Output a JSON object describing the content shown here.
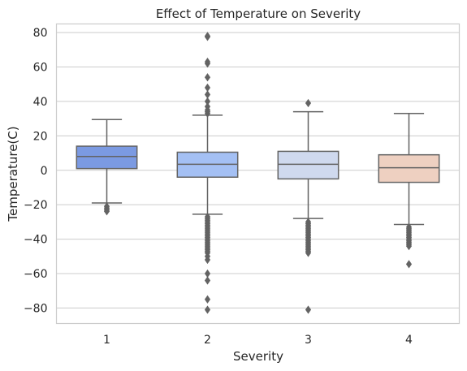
{
  "chart_data": {
    "type": "box",
    "title": "Effect of Temperature on Severity",
    "xlabel": "Severity",
    "ylabel": "Temperature(C)",
    "ylim": [
      -89,
      85
    ],
    "yticks": [
      80,
      60,
      40,
      20,
      0,
      -20,
      -40,
      -60,
      -80
    ],
    "ytick_labels": [
      "80",
      "60",
      "40",
      "20",
      "0",
      "−20",
      "−40",
      "−60",
      "−80"
    ],
    "grid": "horizontal",
    "categories": [
      "1",
      "2",
      "3",
      "4"
    ],
    "colors": [
      "#7b9ae2",
      "#a4c0f4",
      "#cfd9ee",
      "#eed0c1"
    ],
    "boxes": [
      {
        "category": "1",
        "whisker_low": -19,
        "q1": 1,
        "median": 8,
        "q3": 14,
        "whisker_high": 29.5,
        "outliers": [
          -21,
          -22,
          -23,
          -23.8
        ]
      },
      {
        "category": "2",
        "whisker_low": -25.5,
        "q1": -4,
        "median": 3.5,
        "q3": 10.5,
        "whisker_high": 32,
        "outliers": [
          33,
          34,
          35,
          37,
          40,
          44,
          48,
          54,
          62,
          63,
          77.5,
          78,
          -27,
          -28,
          -29,
          -30,
          -31,
          -32,
          -33,
          -34,
          -35,
          -36,
          -37,
          -38,
          -39,
          -40,
          -41,
          -42,
          -43,
          -44,
          -45,
          -46,
          -47,
          -48,
          -50,
          -52,
          -60,
          -64,
          -75,
          -81
        ]
      },
      {
        "category": "3",
        "whisker_low": -28,
        "q1": -5,
        "median": 3.5,
        "q3": 11,
        "whisker_high": 34,
        "outliers": [
          39,
          -30,
          -31,
          -32,
          -33,
          -34,
          -35,
          -36,
          -37,
          -38,
          -39,
          -40,
          -41,
          -42,
          -43,
          -44,
          -45,
          -46,
          -47,
          -48,
          -81
        ]
      },
      {
        "category": "4",
        "whisker_low": -31.5,
        "q1": -7,
        "median": 1.5,
        "q3": 9,
        "whisker_high": 33,
        "outliers": [
          -33,
          -34,
          -35,
          -36,
          -37,
          -38,
          -39,
          -40,
          -41,
          -42,
          -43,
          -44,
          -54.5
        ]
      }
    ]
  }
}
